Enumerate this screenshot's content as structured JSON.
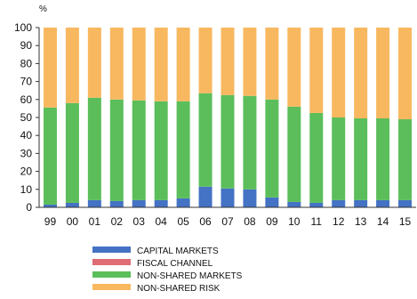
{
  "chart_data": {
    "type": "bar",
    "stacked": true,
    "y_unit_label": "%",
    "ylim": [
      0,
      100
    ],
    "y_ticks": [
      0,
      10,
      20,
      30,
      40,
      50,
      60,
      70,
      80,
      90,
      100
    ],
    "grid": false,
    "legend_position": "bottom-center",
    "categories": [
      "99",
      "00",
      "01",
      "02",
      "03",
      "04",
      "05",
      "06",
      "07",
      "08",
      "09",
      "10",
      "11",
      "12",
      "13",
      "14",
      "15"
    ],
    "series": [
      {
        "name": "CAPITAL MARKETS",
        "color": "#4472C4",
        "values": [
          1.5,
          2.5,
          4,
          3.5,
          4,
          4,
          5,
          11.5,
          10.5,
          10,
          5.5,
          3,
          2.5,
          4,
          4,
          4,
          4
        ]
      },
      {
        "name": "FISCAL CHANNEL",
        "color": "#E06C75",
        "values": [
          0,
          0,
          0,
          0,
          0,
          0,
          0,
          0,
          0,
          0,
          0,
          0,
          0,
          0,
          0,
          0,
          0
        ]
      },
      {
        "name": "NON-SHARED MARKETS",
        "color": "#5BBE5B",
        "values": [
          54,
          55.5,
          57,
          56.5,
          55.5,
          55,
          54,
          52,
          52,
          52,
          54.5,
          53,
          50,
          46,
          45.5,
          45.5,
          45
        ]
      },
      {
        "name": "NON-SHARED RISK",
        "color": "#F8B860",
        "values": [
          44.5,
          42,
          39,
          40,
          40.5,
          41,
          41,
          36.5,
          37.5,
          38,
          40,
          44,
          47.5,
          50,
          50.5,
          50.5,
          51
        ]
      }
    ]
  }
}
